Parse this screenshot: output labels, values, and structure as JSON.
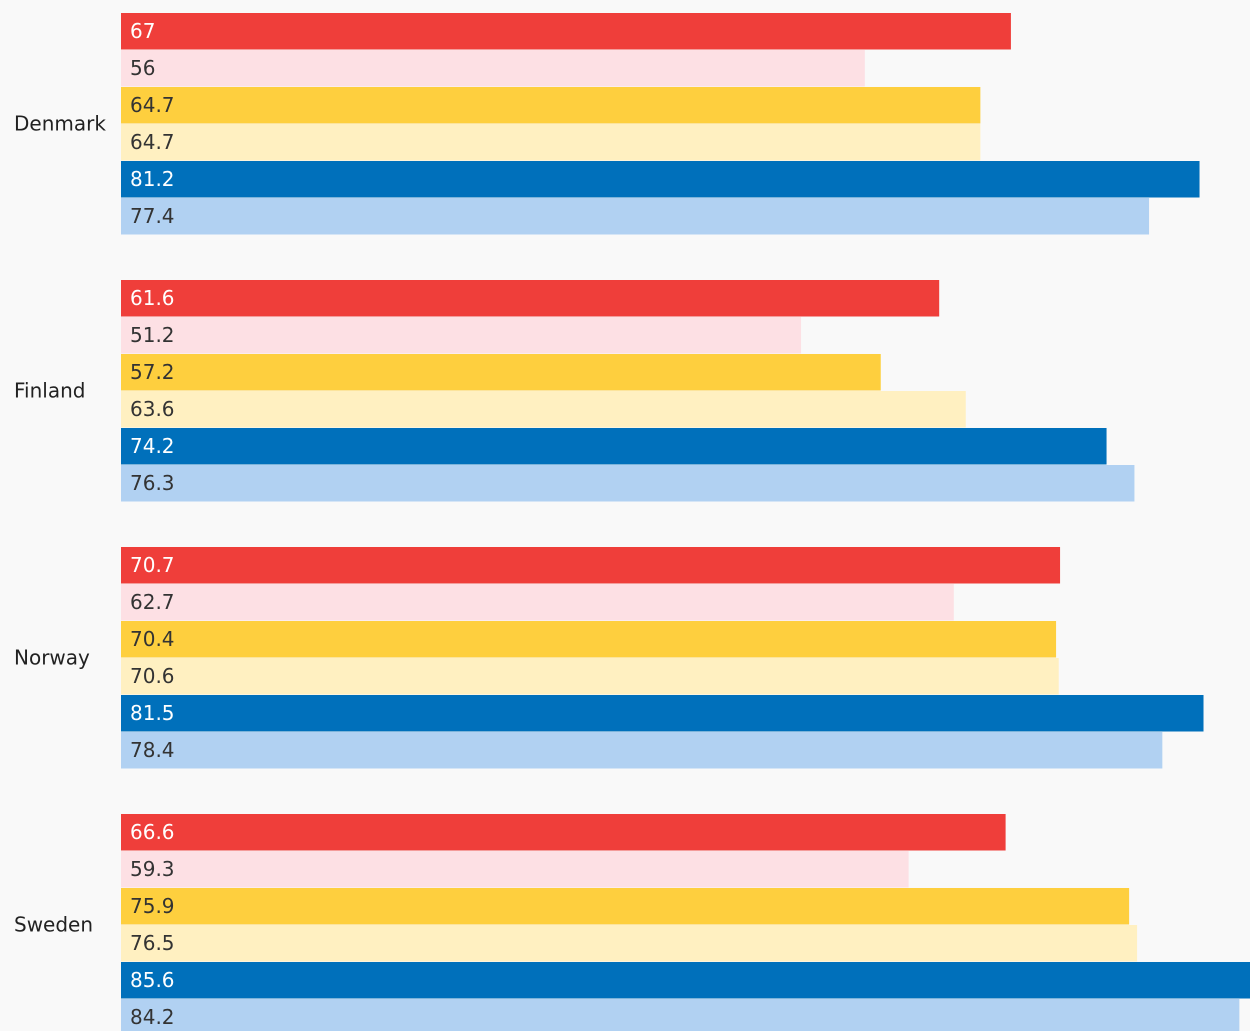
{
  "chart_data": {
    "type": "bar",
    "orientation": "horizontal",
    "categories": [
      "Denmark",
      "Finland",
      "Norway",
      "Sweden"
    ],
    "series": [
      {
        "color": "#ef3e3a",
        "values": [
          67,
          61.6,
          70.7,
          66.6
        ]
      },
      {
        "color": "#fde0e4",
        "values": [
          56,
          51.2,
          62.7,
          59.3
        ]
      },
      {
        "color": "#fecf3e",
        "values": [
          64.7,
          57.2,
          70.4,
          75.9
        ]
      },
      {
        "color": "#fff0c1",
        "values": [
          64.7,
          63.6,
          70.6,
          76.5
        ]
      },
      {
        "color": "#0070bb",
        "values": [
          81.2,
          74.2,
          81.5,
          85.6
        ]
      },
      {
        "color": "#b1d1f2",
        "values": [
          77.4,
          76.3,
          78.4,
          84.2
        ]
      }
    ],
    "xlim": [
      0,
      85
    ],
    "grid": false
  }
}
